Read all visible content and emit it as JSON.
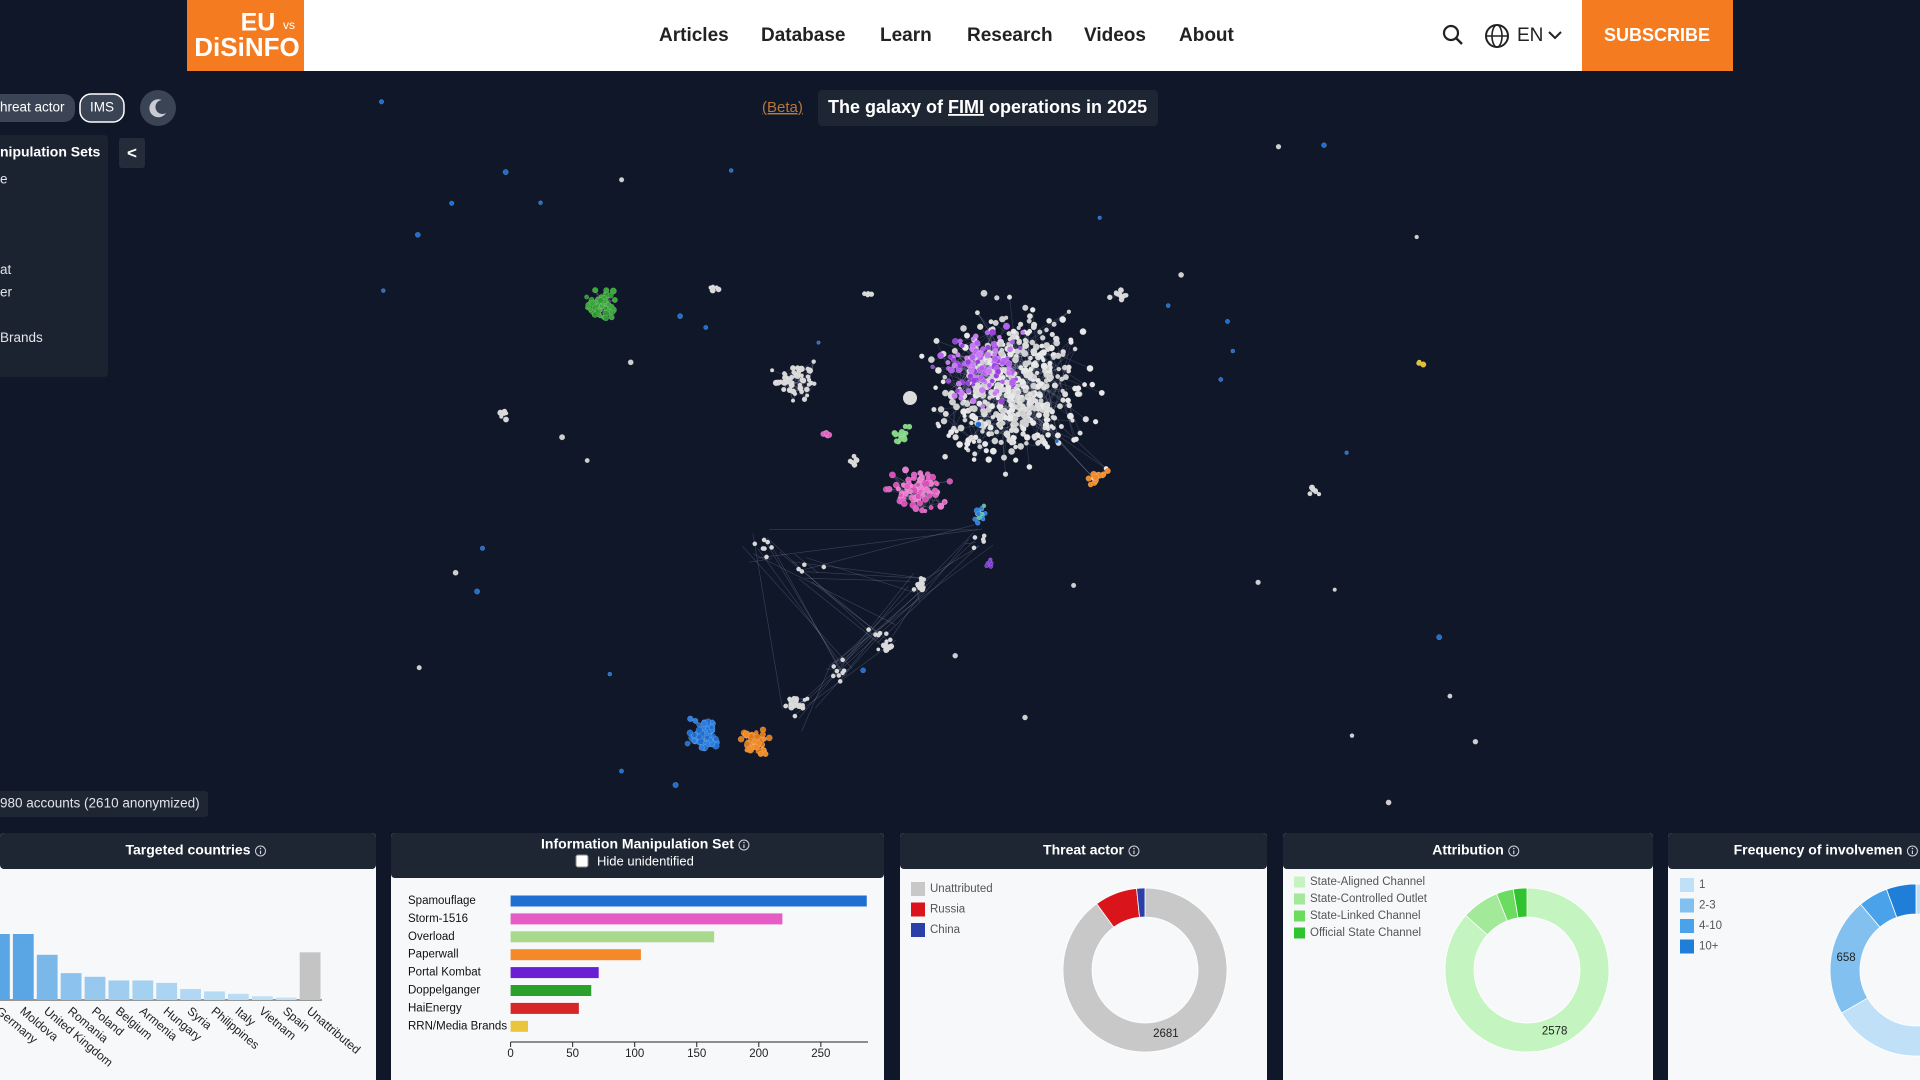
{
  "header": {
    "logo": {
      "top": "EU",
      "small": "vs",
      "bottom": "DiSiNFO"
    },
    "nav": [
      "Articles",
      "Database",
      "Learn",
      "Research",
      "Videos",
      "About"
    ],
    "language": "EN",
    "subscribe": "SUBSCRIBE"
  },
  "controls": {
    "threat_actor_button": "hreat actor",
    "ims_button": "IMS"
  },
  "sidebar": {
    "heading": "nipulation Sets",
    "collapse": "<",
    "items": [
      "e",
      "at",
      "er",
      "Brands"
    ]
  },
  "galaxy": {
    "beta": "(Beta)",
    "title": {
      "before": "The galaxy of",
      "link": "FIMI",
      "after": "operations in 2025"
    }
  },
  "accounts_note": "980 accounts (2610 anonymized)",
  "chart_data": [
    {
      "type": "bar",
      "title": "Targeted countries",
      "categories": [
        "Germany",
        "Moldova",
        "United Kingdom",
        "Romania",
        "Poland",
        "Belgium",
        "Armenia",
        "Hungary",
        "Syria",
        "Philippines",
        "Italy",
        "Vietnam",
        "Spain",
        "Unattributed"
      ],
      "values": [
        54,
        54,
        37,
        22,
        19,
        16,
        16,
        14,
        9,
        7,
        5,
        3,
        2,
        39
      ],
      "colors": [
        "#5aa6e4",
        "#5aa6e4",
        "#7ab8ea",
        "#8cc3ee",
        "#97c9ef",
        "#9fcdf0",
        "#a5d1f1",
        "#aad4f2",
        "#b0d7f3",
        "#b5daf4",
        "#badcf4",
        "#bfdff5",
        "#c3e1f6",
        "#c4c4c4"
      ]
    },
    {
      "type": "barh",
      "title": "Information Manipulation Set",
      "control": "Hide unidentified",
      "categories": [
        "Spamouflage",
        "Storm-1516",
        "Overload",
        "Paperwall",
        "Portal Kombat",
        "Doppelganger",
        "HaiEnergy",
        "RRN/Media Brands"
      ],
      "values": [
        287,
        219,
        164,
        105,
        71,
        65,
        55,
        14
      ],
      "colors": [
        "#1f6fd0",
        "#e45cc4",
        "#a8d98c",
        "#f5892a",
        "#6b1fd2",
        "#2ca02c",
        "#d62728",
        "#e8c53a"
      ],
      "xlim": [
        0,
        288
      ],
      "xticks": [
        0,
        50,
        100,
        150,
        200,
        250
      ]
    },
    {
      "type": "donut",
      "title": "Threat actor",
      "categories": [
        "Unattributed",
        "Russia",
        "China"
      ],
      "values": [
        2681,
        250,
        49
      ],
      "colors": [
        "#c8c8c8",
        "#d9151b",
        "#2a3fa8"
      ]
    },
    {
      "type": "donut",
      "title": "Attribution",
      "categories": [
        "State-Aligned Channel",
        "State-Controlled Outlet",
        "State-Linked Channel",
        "Official State Channel"
      ],
      "values": [
        2578,
        220,
        100,
        80
      ],
      "colors": [
        "#c4f4bf",
        "#a2ea9a",
        "#6bdc5f",
        "#2fc42f"
      ]
    },
    {
      "type": "donut",
      "title": "Frequency of involvemen",
      "categories": [
        "1",
        "2-3",
        "4-10",
        "10+"
      ],
      "values": [
        1975,
        658,
        165,
        165
      ],
      "colors": [
        "#bfe0f7",
        "#82c0f0",
        "#4aa3ea",
        "#1f7fd8"
      ]
    }
  ]
}
